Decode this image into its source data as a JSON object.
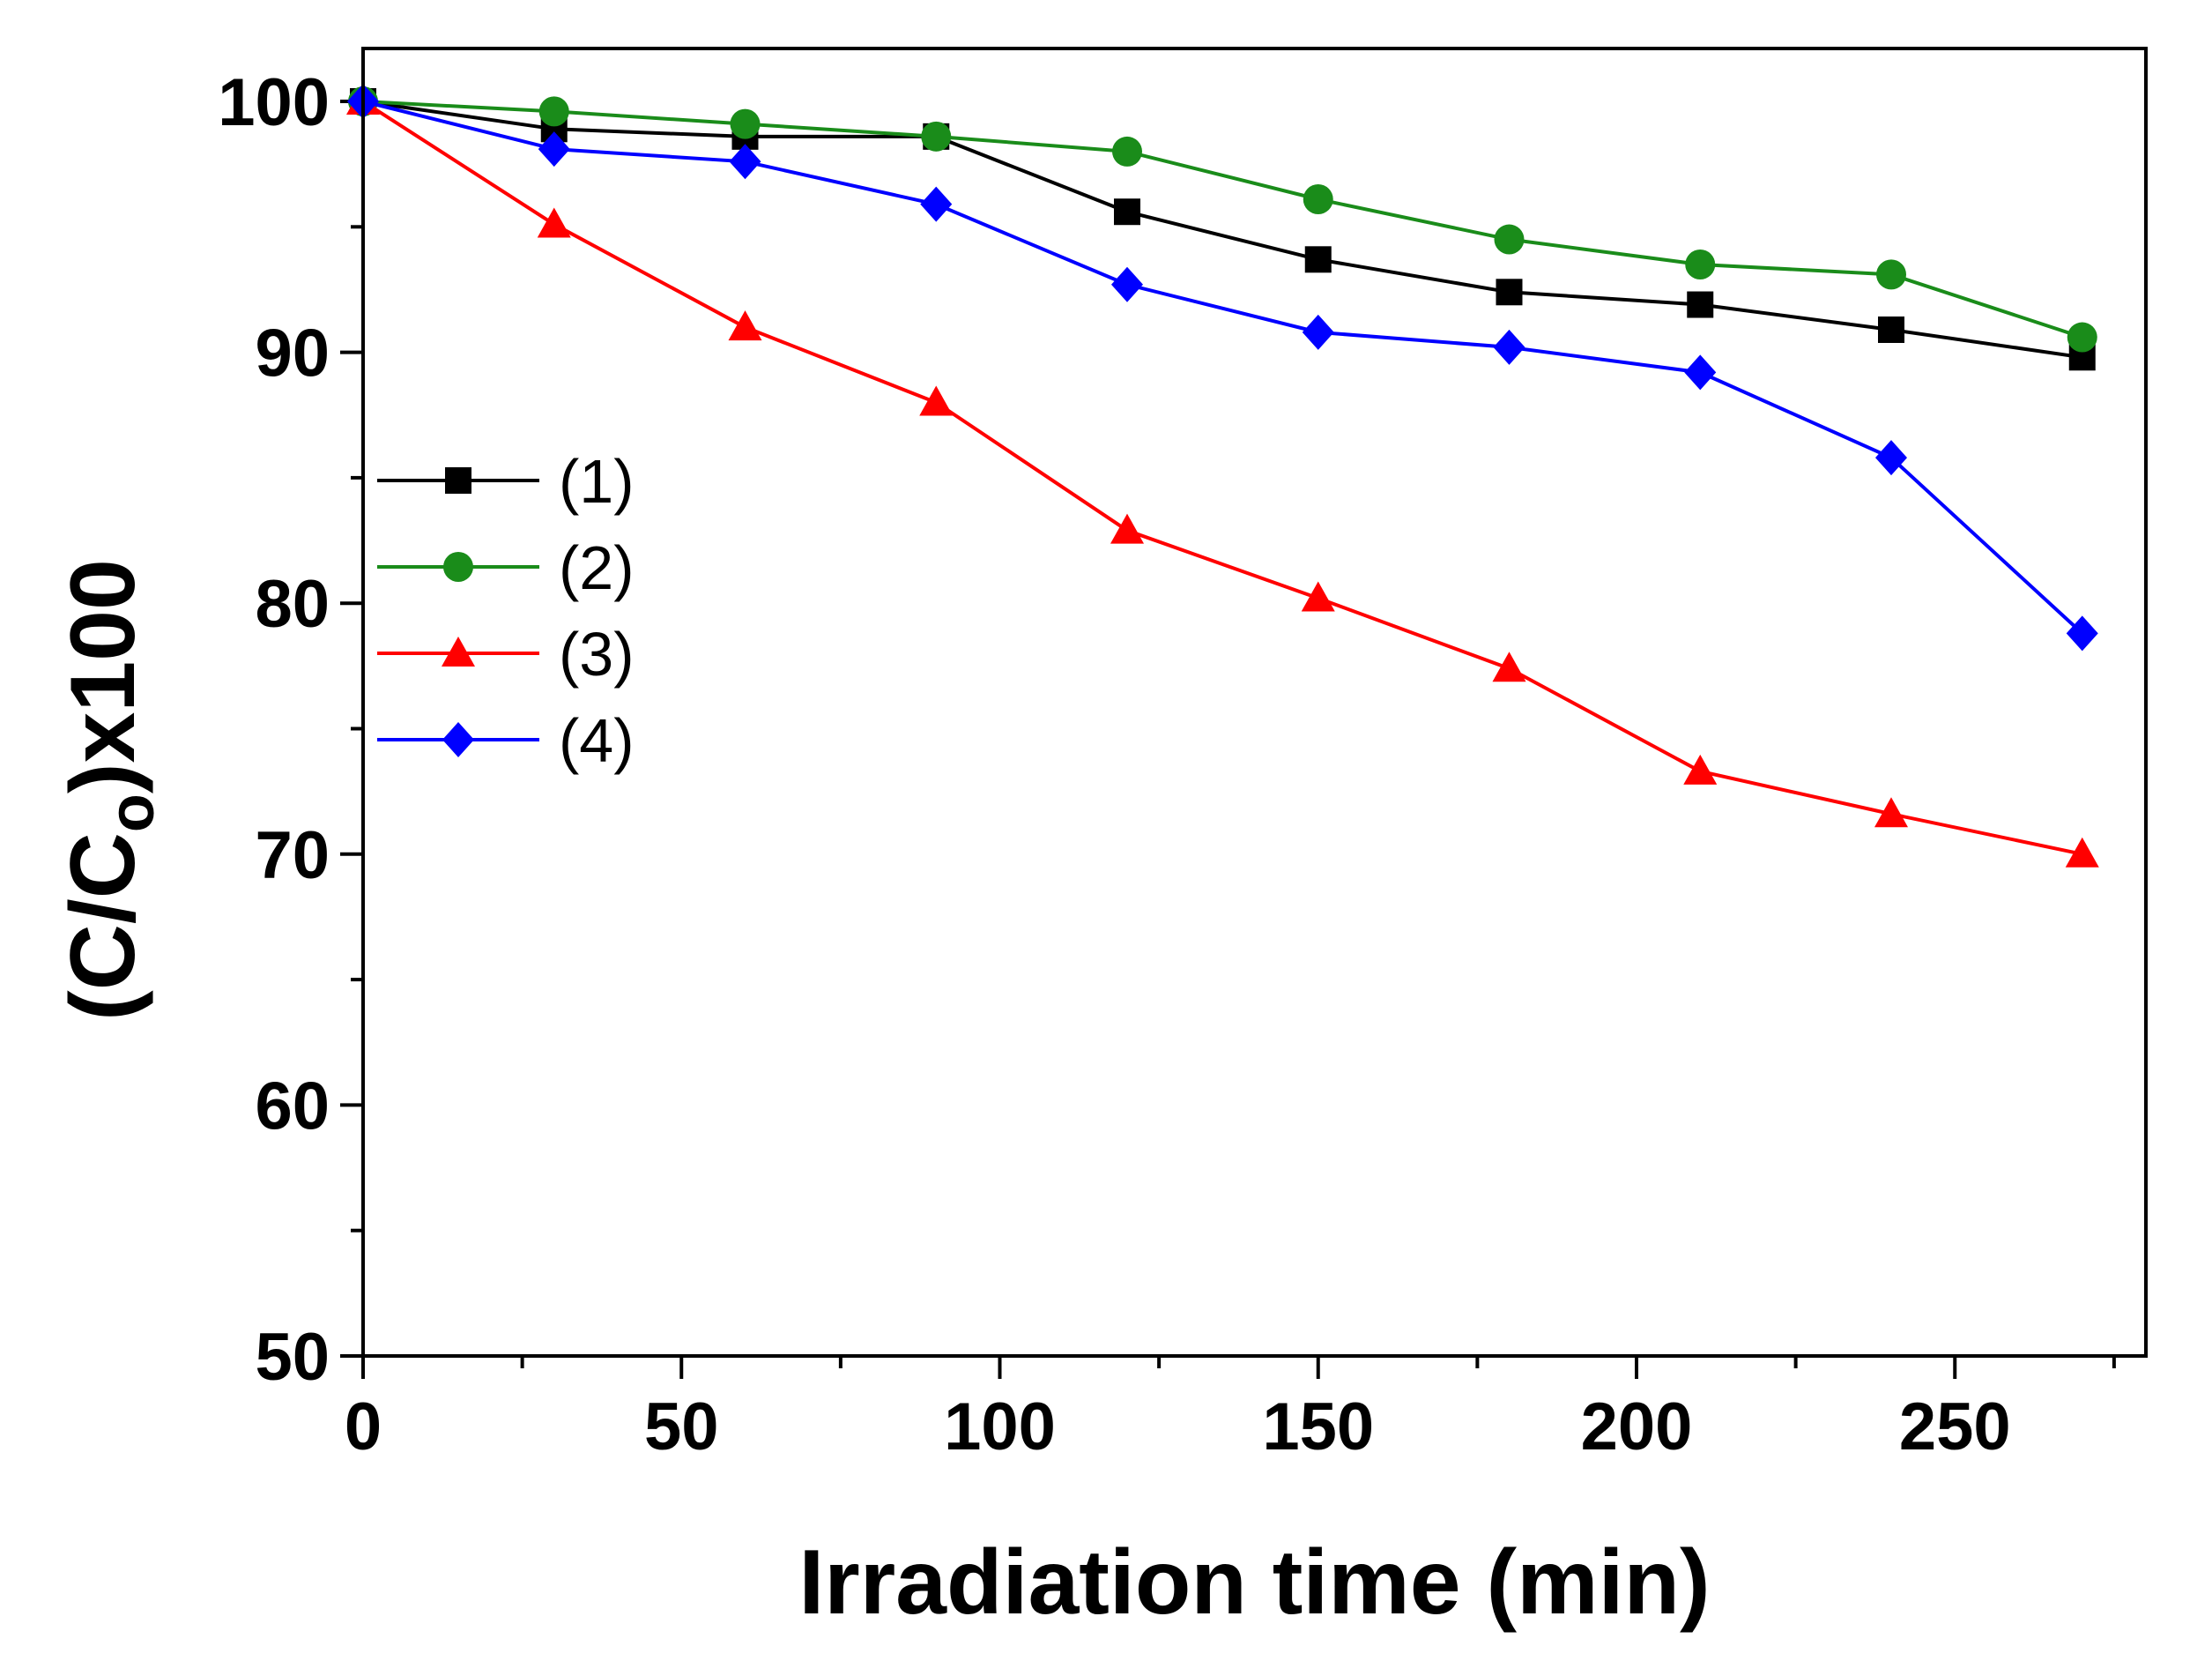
{
  "chart_data": {
    "type": "line",
    "title": "",
    "xlabel": "Irradiation time (min)",
    "ylabel": {
      "prefix": "(C/C",
      "subscript": "o",
      "suffix": ")x100"
    },
    "xlim": [
      0,
      280
    ],
    "ylim": [
      50,
      100
    ],
    "xticks": [
      0,
      50,
      100,
      150,
      200,
      250
    ],
    "yticks": [
      50,
      60,
      70,
      80,
      90,
      100
    ],
    "xtick_labels": [
      "0",
      "50",
      "100",
      "150",
      "200",
      "250"
    ],
    "ytick_labels": [
      "50",
      "60",
      "70",
      "80",
      "90",
      "100"
    ],
    "x": [
      0,
      30,
      60,
      90,
      120,
      150,
      180,
      210,
      240,
      270
    ],
    "legend_position": "left-middle",
    "series": [
      {
        "name": "(1)",
        "color": "#000000",
        "marker": "square",
        "values": [
          100,
          98.9,
          98.6,
          98.6,
          95.6,
          93.7,
          92.4,
          91.9,
          90.9,
          89.8
        ]
      },
      {
        "name": "(2)",
        "color": "#1a8c1a",
        "marker": "circle",
        "values": [
          100,
          99.6,
          99.1,
          98.6,
          98.0,
          96.1,
          94.5,
          93.5,
          93.1,
          90.6
        ]
      },
      {
        "name": "(3)",
        "color": "#ff0000",
        "marker": "triangle",
        "values": [
          100,
          95.1,
          91.0,
          88.0,
          82.9,
          80.2,
          77.4,
          73.3,
          71.6,
          70.0
        ]
      },
      {
        "name": "(4)",
        "color": "#0000ff",
        "marker": "diamond",
        "values": [
          100,
          98.1,
          97.6,
          95.9,
          92.7,
          90.8,
          90.2,
          89.2,
          85.8,
          78.8
        ]
      }
    ]
  }
}
